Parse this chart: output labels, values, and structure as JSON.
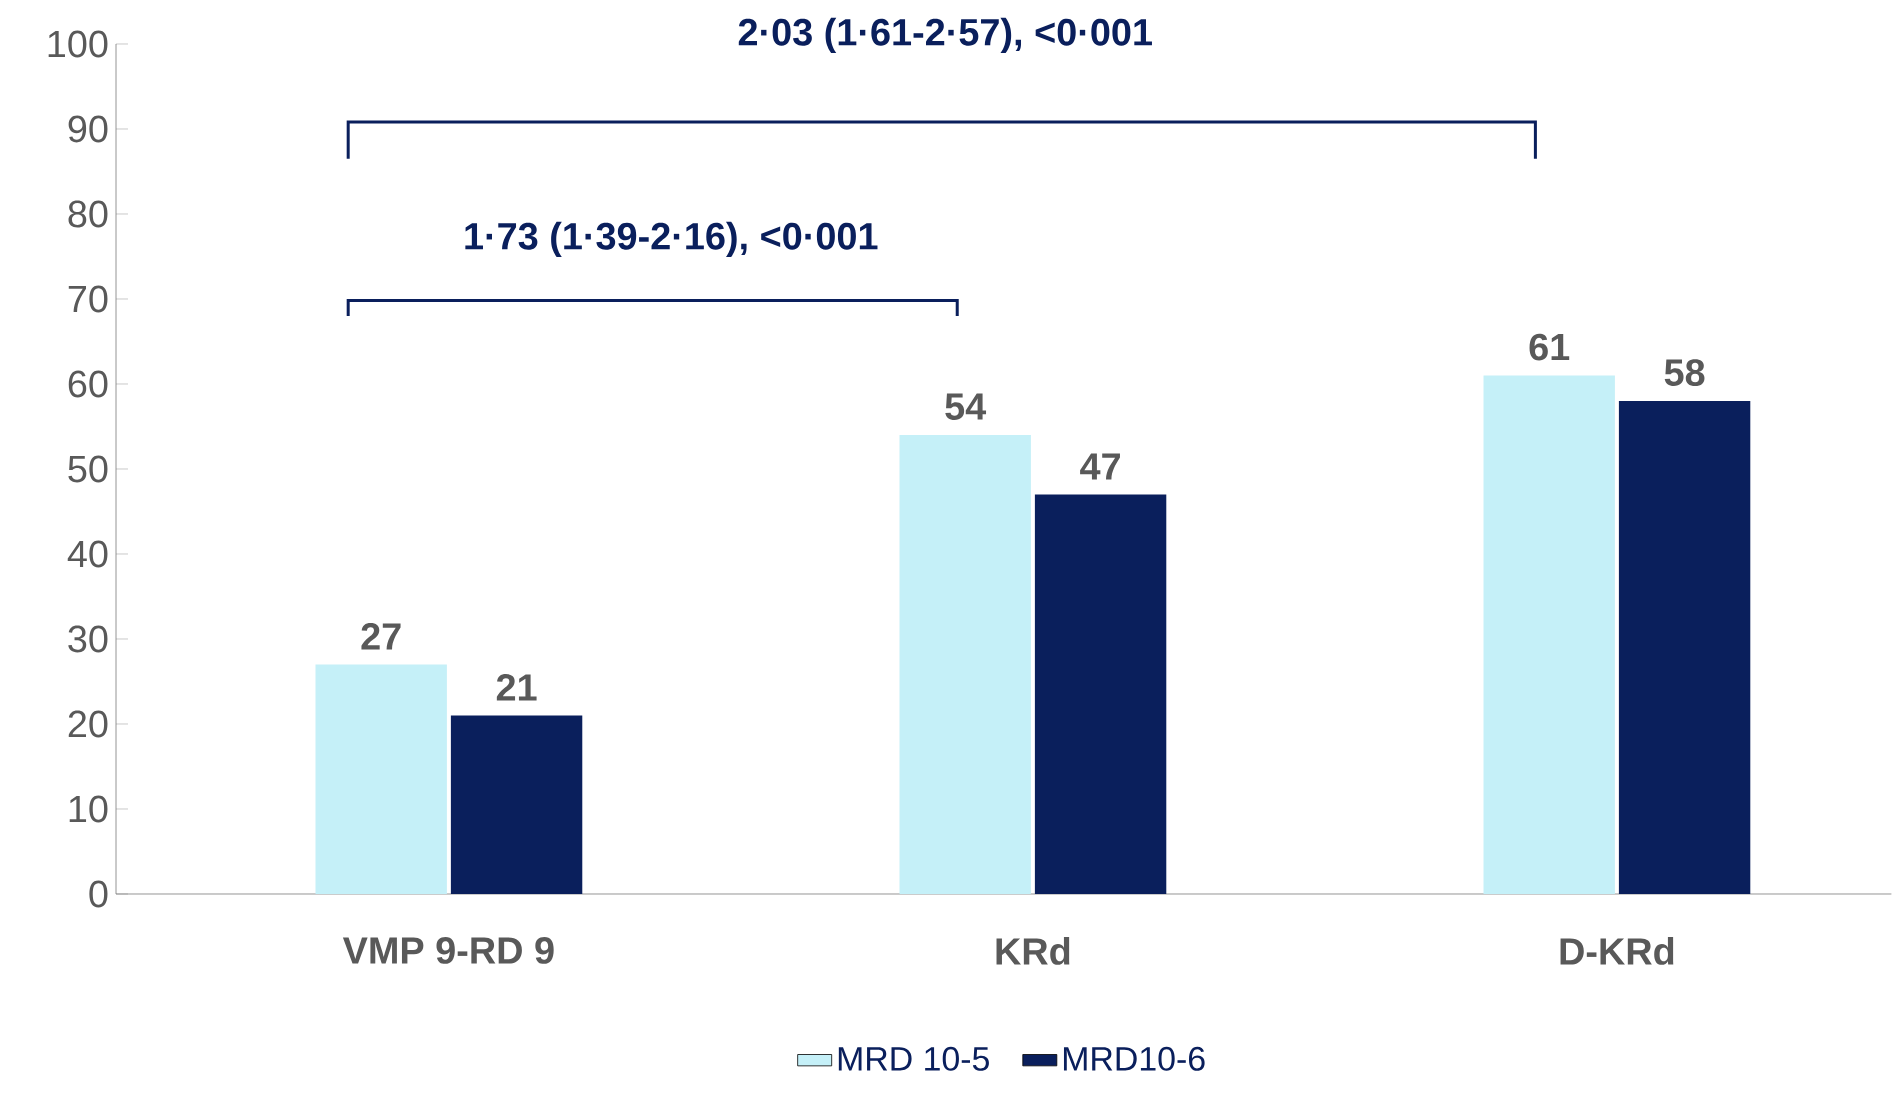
{
  "chart_data": {
    "type": "bar",
    "categories": [
      "VMP 9-RD 9",
      "KRd",
      "D-KRd"
    ],
    "series": [
      {
        "name": "MRD 10-5",
        "color": "#c5f0f8",
        "values": [
          27,
          54,
          61
        ]
      },
      {
        "name": "MRD10-6",
        "color": "#0a1f5c",
        "values": [
          21,
          47,
          58
        ]
      }
    ],
    "ylim": [
      0,
      100
    ],
    "yticks": [
      0,
      10,
      20,
      30,
      40,
      50,
      60,
      70,
      80,
      90,
      100
    ],
    "data_labels": true,
    "grid": false,
    "legend": "bottom",
    "annotations": [
      "1·73 (1·39-2·16), <0·001",
      "2·03 (1·61-2·57), <0·001"
    ]
  }
}
